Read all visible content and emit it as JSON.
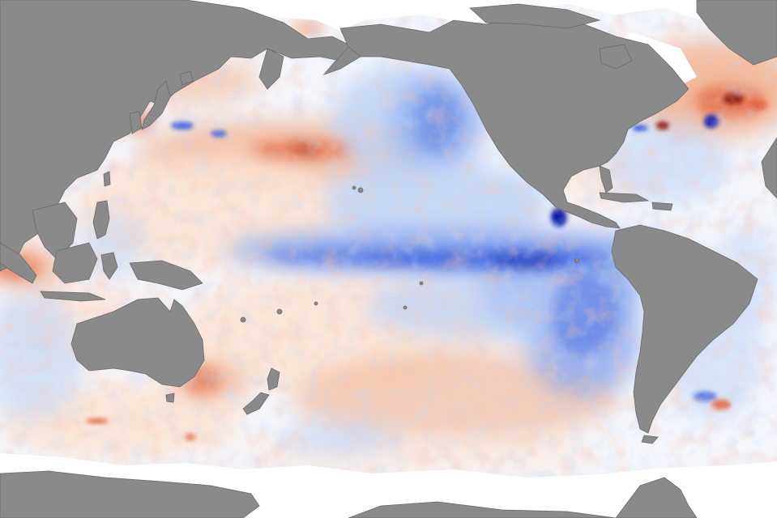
{
  "map": {
    "type": "sea-surface-temperature-anomaly",
    "projection": "pacific-centered",
    "colors": {
      "land": "#8a8a8a",
      "land_outline": "#6a6a6a",
      "ice_no_data": "#ffffff",
      "ocean_neutral": "#f4f6fb",
      "cool_light": "#bcd2f6",
      "cool_medium": "#7ea0ec",
      "cool_strong": "#3f62dc",
      "cool_extreme": "#0b1fa6",
      "warm_light": "#fde3d2",
      "warm_medium": "#f3ae88",
      "warm_strong": "#e0643c",
      "warm_extreme": "#8a150a"
    },
    "continents": [
      "north-america",
      "south-america",
      "eurasia",
      "australia",
      "antarctica",
      "new-zealand",
      "greenland",
      "alaska"
    ],
    "labels_visible": false
  }
}
